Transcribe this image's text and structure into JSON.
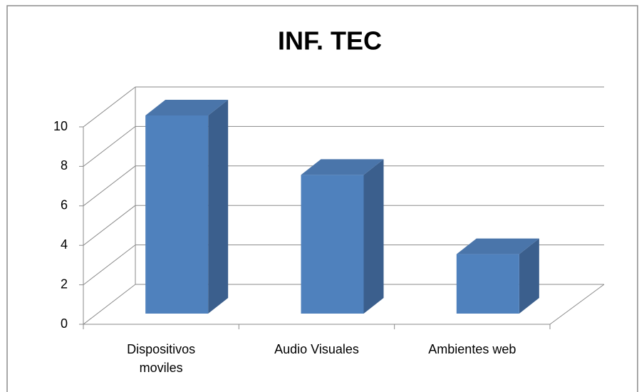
{
  "chart_data": {
    "type": "bar3d",
    "title": "INF. TEC",
    "categories": [
      "Dispositivos moviles",
      "Audio Visuales",
      "Ambientes web"
    ],
    "values": [
      10,
      7,
      3
    ],
    "color": "#4f81bd",
    "ylim": [
      0,
      10
    ],
    "yticks": [
      0,
      2,
      4,
      6,
      8,
      10
    ],
    "grid": true
  }
}
